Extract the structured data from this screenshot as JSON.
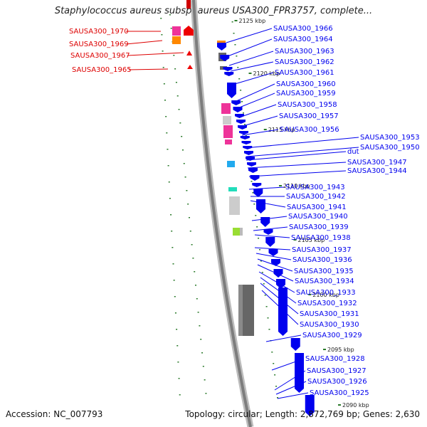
{
  "title": "Staphylococcus aureus subsp. aureus USA300_FPR3757, complete...",
  "footer": {
    "accession_label": "Accession:",
    "accession": "NC_007793",
    "topology_label": "Topology:",
    "topology": "circular",
    "length_label": "Length:",
    "length": "2,872,769 bp",
    "genes_label": "Genes:",
    "genes": "2,630"
  },
  "colors": {
    "forward_gene": "#0000ee",
    "reverse_label": "#dd0000",
    "backbone": "#999999",
    "dots": "#2a7a2a"
  },
  "ticks": [
    "2125 kbp",
    "2120 kbp",
    "2115 kbp",
    "2110 kbp",
    "2105 kbp",
    "2100 kbp",
    "2095 kbp",
    "2090 kbp"
  ],
  "left_labels": [
    "SAUSA300_1970",
    "SAUSA300_1969",
    "SAUSA300_1967",
    "SAUSA300_1965"
  ],
  "right_labels": [
    "SAUSA300_1966",
    "SAUSA300_1964",
    "SAUSA300_1963",
    "SAUSA300_1962",
    "SAUSA300_1961",
    "SAUSA300_1960",
    "SAUSA300_1959",
    "SAUSA300_1958",
    "SAUSA300_1957",
    "SAUSA300_1956",
    "SAUSA300_1953",
    "SAUSA300_1950",
    "dut",
    "SAUSA300_1947",
    "SAUSA300_1944",
    "SAUSA300_1943",
    "SAUSA300_1942",
    "SAUSA300_1941",
    "SAUSA300_1940",
    "SAUSA300_1939",
    "SAUSA300_1938",
    "SAUSA300_1937",
    "SAUSA300_1936",
    "SAUSA300_1935",
    "SAUSA300_1934",
    "SAUSA300_1933",
    "SAUSA300_1932",
    "SAUSA300_1931",
    "SAUSA300_1930",
    "SAUSA300_1929",
    "SAUSA300_1928",
    "SAUSA300_1927",
    "SAUSA300_1926",
    "SAUSA300_1925"
  ]
}
